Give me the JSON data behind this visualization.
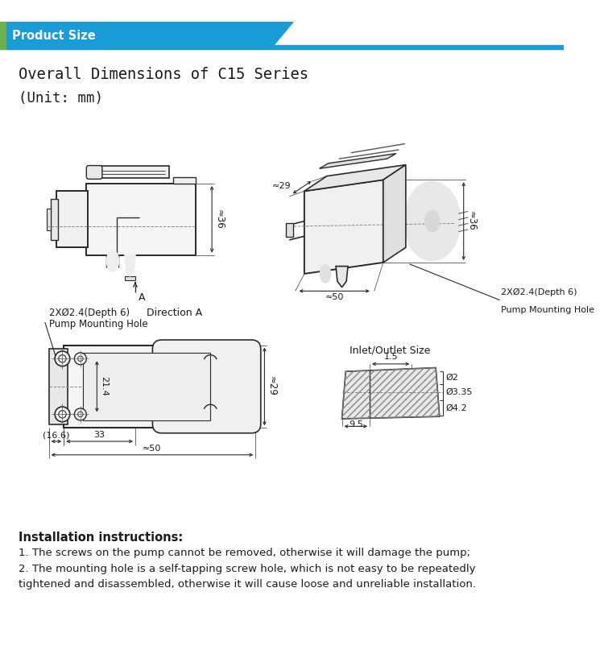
{
  "title_banner": "Product Size",
  "banner_color": "#1a9cd8",
  "banner_green": "#6ab04c",
  "title_line1": "Overall Dimensions of C15 Series",
  "title_line2": "(Unit: mm)",
  "instruction_title": "Installation instructions:",
  "instruction1": "1. The screws on the pump cannot be removed, otherwise it will damage the pump;",
  "instruction2": "2. The mounting hole is a self-tapping screw hole, which is not easy to be repeatedly",
  "instruction3": "tightened and disassembled, otherwise it will cause loose and unreliable installation.",
  "bg_color": "#ffffff",
  "text_color": "#1a1a1a",
  "line_color": "#2a2a2a",
  "dim_line_color": "#1a1a1a"
}
